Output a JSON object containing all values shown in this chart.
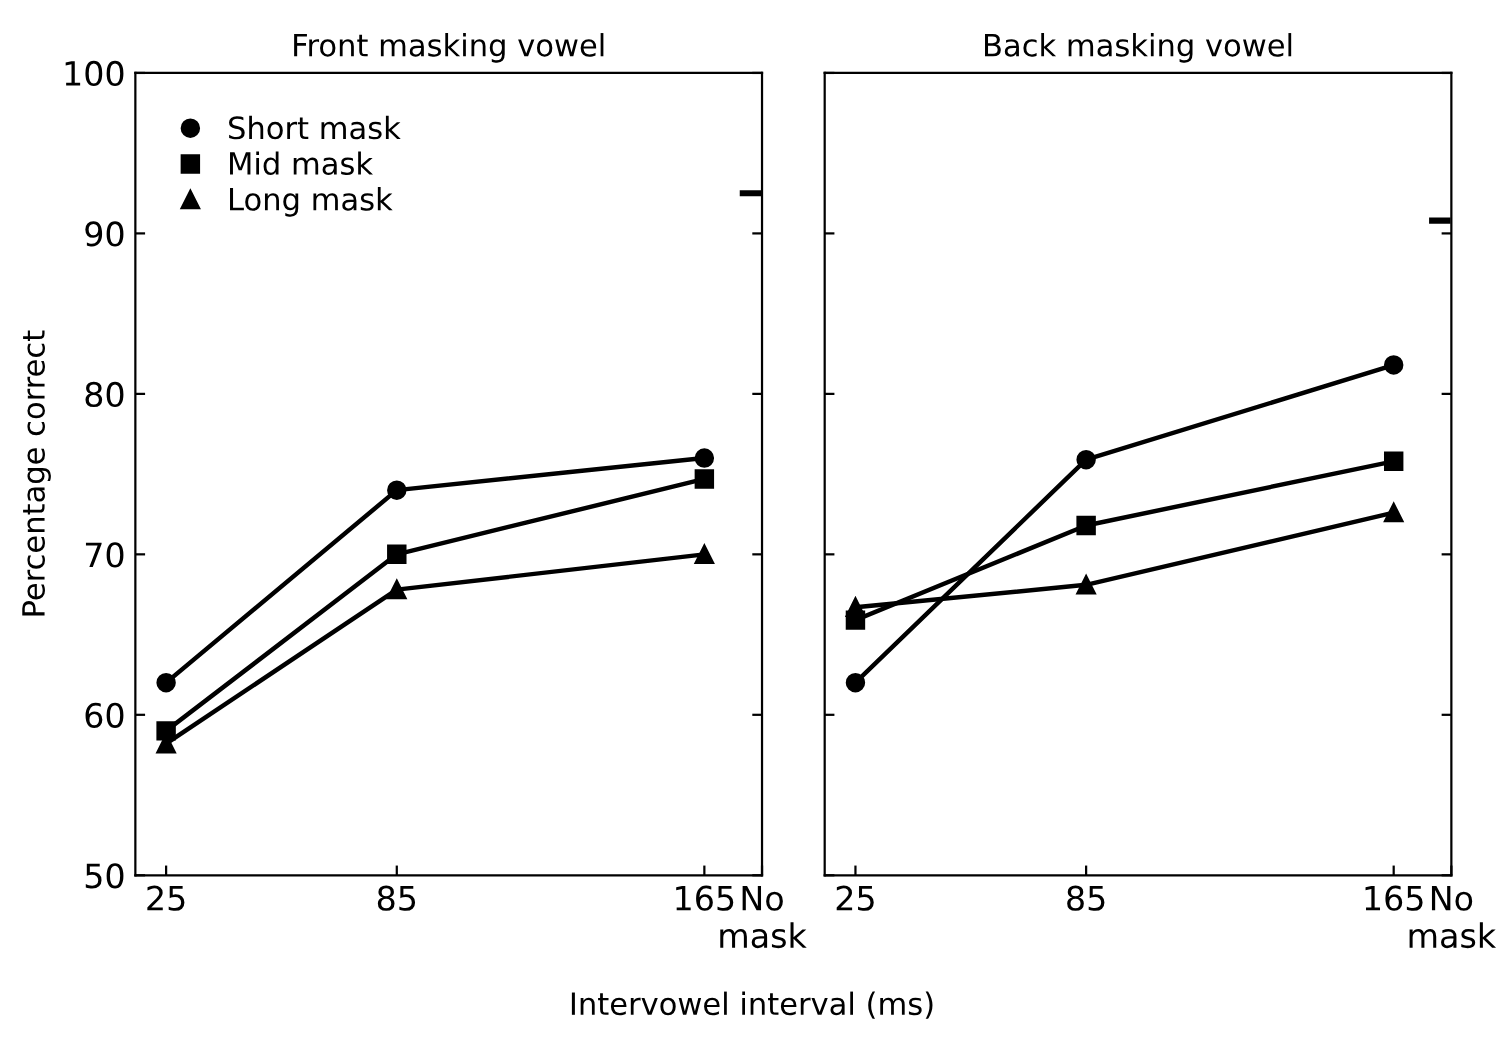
{
  "chart_data": [
    {
      "type": "line",
      "title": "Front masking vowel",
      "xlabel": "Intervowel interval (ms)",
      "ylabel": "Percentage correct",
      "xlim": [
        17,
        180
      ],
      "xticks": [
        25,
        85,
        165,
        {
          "value": 180,
          "label": "No\nmask"
        }
      ],
      "ylim": [
        50,
        100
      ],
      "yticks": [
        50,
        60,
        70,
        80,
        90,
        100
      ],
      "legend": "top left",
      "grid": false,
      "series": [
        {
          "name": "Short mask",
          "color": "#000000",
          "marker": "circle",
          "x": [
            25,
            85,
            165
          ],
          "values": [
            62,
            74,
            76
          ]
        },
        {
          "name": "Mid mask",
          "color": "#000000",
          "marker": "square",
          "x": [
            25,
            85,
            165
          ],
          "values": [
            59,
            70,
            74.7
          ]
        },
        {
          "name": "Long mask",
          "color": "#000000",
          "marker": "triangle",
          "x": [
            25,
            85,
            165
          ],
          "values": [
            58.2,
            67.8,
            70
          ]
        },
        {
          "color": "#000000",
          "marker": "none",
          "x": [
            175,
            179
          ],
          "values": [
            92.5,
            92.5
          ]
        }
      ]
    },
    {
      "type": "line",
      "title": "Back masking vowel",
      "xlim": [
        17,
        180
      ],
      "xticks": [
        25,
        85,
        165,
        {
          "value": 180,
          "label": "No\nmask"
        }
      ],
      "ylim": [
        50,
        100
      ],
      "yticks": [
        50,
        60,
        70,
        80,
        90,
        100
      ],
      "tick_labels": "x",
      "grid": false,
      "series": [
        {
          "color": "#000000",
          "marker": "circle",
          "x": [
            25,
            85,
            165
          ],
          "values": [
            62,
            75.9,
            81.8
          ]
        },
        {
          "color": "#000000",
          "marker": "square",
          "x": [
            25,
            85,
            165
          ],
          "values": [
            65.9,
            71.8,
            75.8
          ]
        },
        {
          "color": "#000000",
          "marker": "triangle",
          "x": [
            25,
            85,
            165
          ],
          "values": [
            66.7,
            68.1,
            72.6
          ]
        },
        {
          "color": "#000000",
          "marker": "none",
          "x": [
            175,
            179
          ],
          "values": [
            90.8,
            90.8
          ]
        }
      ]
    }
  ]
}
